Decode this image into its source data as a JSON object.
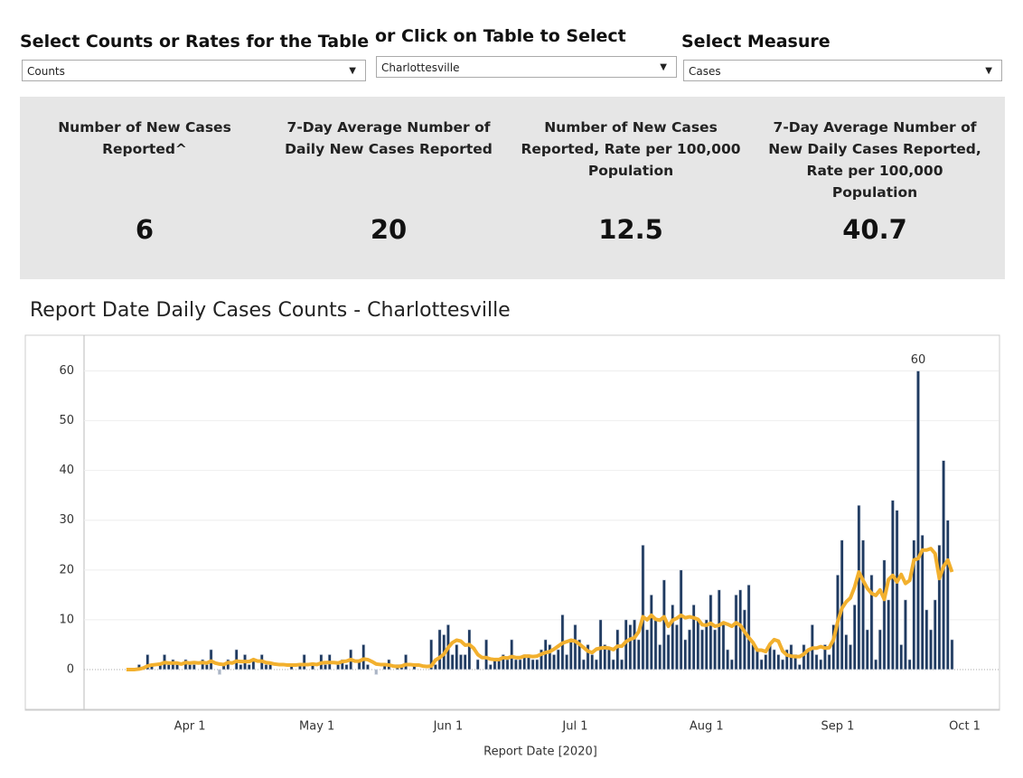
{
  "filters": [
    {
      "label": "Select Counts or Rates for the Table",
      "value": "Counts"
    },
    {
      "label": "or Click on Table to Select",
      "value": "Charlottesville"
    },
    {
      "label": "Select Measure",
      "value": "Cases"
    }
  ],
  "kpis": [
    {
      "label": "Number of New Cases Reported^",
      "value": 6
    },
    {
      "label": "7-Day Average Number of Daily New Cases Reported",
      "value": 20
    },
    {
      "label": "Number of New Cases Reported, Rate per 100,000 Population",
      "value": 12.5
    },
    {
      "label": "7-Day Average Number of New Daily Cases Reported, Rate per 100,000 Population",
      "value": 40.7
    }
  ],
  "chart_data": {
    "type": "bar",
    "title": "Report Date Daily Cases Counts - Charlottesville",
    "x_label": "Report Date [2020]",
    "x": [
      "2020-03-17",
      "2020-03-18",
      "2020-03-19",
      "2020-03-20",
      "2020-03-21",
      "2020-03-22",
      "2020-03-23",
      "2020-03-24",
      "2020-03-25",
      "2020-03-26",
      "2020-03-27",
      "2020-03-28",
      "2020-03-29",
      "2020-03-30",
      "2020-03-31",
      "2020-04-01",
      "2020-04-02",
      "2020-04-03",
      "2020-04-04",
      "2020-04-05",
      "2020-04-06",
      "2020-04-07",
      "2020-04-08",
      "2020-04-09",
      "2020-04-10",
      "2020-04-11",
      "2020-04-12",
      "2020-04-13",
      "2020-04-14",
      "2020-04-15",
      "2020-04-16",
      "2020-04-17",
      "2020-04-18",
      "2020-04-19",
      "2020-04-20",
      "2020-04-21",
      "2020-04-22",
      "2020-04-23",
      "2020-04-24",
      "2020-04-25",
      "2020-04-26",
      "2020-04-27",
      "2020-04-28",
      "2020-04-29",
      "2020-04-30",
      "2020-05-01",
      "2020-05-02",
      "2020-05-03",
      "2020-05-04",
      "2020-05-05",
      "2020-05-06",
      "2020-05-07",
      "2020-05-08",
      "2020-05-09",
      "2020-05-10",
      "2020-05-11",
      "2020-05-12",
      "2020-05-13",
      "2020-05-14",
      "2020-05-15",
      "2020-05-16",
      "2020-05-17",
      "2020-05-18",
      "2020-05-19",
      "2020-05-20",
      "2020-05-21",
      "2020-05-22",
      "2020-05-23",
      "2020-05-24",
      "2020-05-25",
      "2020-05-26",
      "2020-05-27",
      "2020-05-28",
      "2020-05-29",
      "2020-05-30",
      "2020-05-31",
      "2020-06-01",
      "2020-06-02",
      "2020-06-03",
      "2020-06-04",
      "2020-06-05",
      "2020-06-06",
      "2020-06-07",
      "2020-06-08",
      "2020-06-09",
      "2020-06-10",
      "2020-06-11",
      "2020-06-12",
      "2020-06-13",
      "2020-06-14",
      "2020-06-15",
      "2020-06-16",
      "2020-06-17",
      "2020-06-18",
      "2020-06-19",
      "2020-06-20",
      "2020-06-21",
      "2020-06-22",
      "2020-06-23",
      "2020-06-24",
      "2020-06-25",
      "2020-06-26",
      "2020-06-27",
      "2020-06-28",
      "2020-06-29",
      "2020-06-30",
      "2020-07-01",
      "2020-07-02",
      "2020-07-03",
      "2020-07-04",
      "2020-07-05",
      "2020-07-06",
      "2020-07-07",
      "2020-07-08",
      "2020-07-09",
      "2020-07-10",
      "2020-07-11",
      "2020-07-12",
      "2020-07-13",
      "2020-07-14",
      "2020-07-15",
      "2020-07-16",
      "2020-07-17",
      "2020-07-18",
      "2020-07-19",
      "2020-07-20",
      "2020-07-21",
      "2020-07-22",
      "2020-07-23",
      "2020-07-24",
      "2020-07-25",
      "2020-07-26",
      "2020-07-27",
      "2020-07-28",
      "2020-07-29",
      "2020-07-30",
      "2020-07-31",
      "2020-08-01",
      "2020-08-02",
      "2020-08-03",
      "2020-08-04",
      "2020-08-05",
      "2020-08-06",
      "2020-08-07",
      "2020-08-08",
      "2020-08-09",
      "2020-08-10",
      "2020-08-11",
      "2020-08-12",
      "2020-08-13",
      "2020-08-14",
      "2020-08-15",
      "2020-08-16",
      "2020-08-17",
      "2020-08-18",
      "2020-08-19",
      "2020-08-20",
      "2020-08-21",
      "2020-08-22",
      "2020-08-23",
      "2020-08-24",
      "2020-08-25",
      "2020-08-26",
      "2020-08-27",
      "2020-08-28",
      "2020-08-29",
      "2020-08-30",
      "2020-08-31",
      "2020-09-01",
      "2020-09-02",
      "2020-09-03",
      "2020-09-04",
      "2020-09-05",
      "2020-09-06",
      "2020-09-07",
      "2020-09-08",
      "2020-09-09",
      "2020-09-10",
      "2020-09-11",
      "2020-09-12",
      "2020-09-13",
      "2020-09-14",
      "2020-09-15",
      "2020-09-16",
      "2020-09-17",
      "2020-09-18",
      "2020-09-19",
      "2020-09-20",
      "2020-09-21",
      "2020-09-22",
      "2020-09-23",
      "2020-09-24",
      "2020-09-25",
      "2020-09-26",
      "2020-09-27",
      "2020-09-28"
    ],
    "series": [
      {
        "color": "#1f3a60",
        "values": [
          0,
          0,
          0,
          1,
          0,
          3,
          1,
          0,
          1,
          3,
          1,
          2,
          1,
          0,
          2,
          1,
          1,
          0,
          2,
          1,
          4,
          0,
          -1,
          1,
          2,
          0,
          4,
          1,
          3,
          1,
          2,
          0,
          3,
          1,
          1,
          0,
          0,
          0,
          0,
          1,
          0,
          1,
          3,
          0,
          1,
          0,
          3,
          1,
          3,
          0,
          1,
          2,
          1,
          4,
          0,
          2,
          5,
          1,
          0,
          -1,
          0,
          1,
          2,
          0,
          1,
          1,
          3,
          0,
          1,
          0,
          0,
          0,
          6,
          1,
          8,
          7,
          9,
          3,
          5,
          3,
          3,
          8,
          0,
          2,
          0,
          6,
          1,
          2,
          2,
          3,
          2,
          6,
          2,
          2,
          3,
          3,
          2,
          2,
          4,
          6,
          5,
          3,
          4,
          11,
          3,
          6,
          9,
          6,
          2,
          5,
          3,
          2,
          10,
          5,
          4,
          2,
          8,
          2,
          10,
          9,
          10,
          6,
          25,
          8,
          15,
          10,
          5,
          18,
          7,
          13,
          9,
          20,
          6,
          8,
          13,
          10,
          8,
          10,
          15,
          8,
          16,
          9,
          4,
          2,
          15,
          16,
          12,
          17,
          5,
          4,
          2,
          3,
          5,
          4,
          3,
          2,
          4,
          5,
          3,
          1,
          5,
          4,
          9,
          3,
          2,
          5,
          3,
          9,
          19,
          26,
          7,
          5,
          13,
          33,
          26,
          8,
          19,
          2,
          8,
          22,
          14,
          34,
          32,
          5,
          14,
          2,
          26,
          60,
          27,
          12,
          8,
          14,
          25,
          42,
          30,
          6
        ]
      },
      {
        "type": "line",
        "color": "#f2b02e",
        "values": [
          0,
          0,
          0,
          0.1,
          0.3,
          0.7,
          0.9,
          1,
          1.1,
          1.4,
          1.3,
          1.3,
          1.3,
          1.1,
          1.4,
          1.3,
          1.4,
          1.3,
          1.4,
          1.3,
          1.7,
          1.3,
          1.1,
          1,
          1.4,
          1.3,
          1.7,
          1.6,
          1.6,
          1.6,
          2,
          1.7,
          1.7,
          1.4,
          1.3,
          1.1,
          1,
          1,
          0.9,
          0.9,
          0.9,
          1,
          1,
          1,
          1.1,
          1,
          1.3,
          1.4,
          1.4,
          1.4,
          1.3,
          1.6,
          1.7,
          2,
          1.7,
          1.7,
          2.1,
          2,
          1.6,
          1.1,
          1,
          1,
          0.9,
          0.7,
          0.6,
          0.7,
          1,
          1,
          0.9,
          0.9,
          0.7,
          0.6,
          0.7,
          1.9,
          2.4,
          3.1,
          4.4,
          5.4,
          5.9,
          5.7,
          4.9,
          5,
          4.3,
          3,
          2.4,
          2.4,
          2.1,
          2,
          2,
          2.4,
          2.3,
          2.6,
          2.4,
          2.4,
          2.7,
          2.7,
          2.6,
          2.7,
          3.1,
          3.4,
          3.6,
          4.1,
          4.7,
          5.3,
          5.6,
          5.9,
          5.7,
          5.1,
          4.4,
          3.7,
          3.4,
          4.1,
          4.3,
          4.4,
          4.3,
          4,
          4.7,
          4.7,
          5.6,
          6.1,
          6.4,
          7.6,
          10.6,
          10,
          10.9,
          10.1,
          9.9,
          10.6,
          8.7,
          9.9,
          10.3,
          10.9,
          10.4,
          10.6,
          10.4,
          10.1,
          9,
          8.9,
          9.3,
          8.7,
          8.9,
          9.4,
          9.1,
          8.7,
          9.4,
          8.9,
          7.6,
          6.4,
          5.4,
          3.9,
          3.9,
          3.6,
          5.1,
          6,
          5.7,
          3.7,
          2.9,
          2.7,
          2.6,
          2.6,
          3.1,
          3.9,
          4.3,
          4.3,
          4.6,
          4.3,
          4.4,
          6,
          9.6,
          12.3,
          13.6,
          14.4,
          16.6,
          19.6,
          17.9,
          16.3,
          15.3,
          14.9,
          16,
          14.1,
          18.1,
          18.9,
          17.6,
          19.1,
          17.3,
          17.9,
          22,
          22.3,
          24,
          24,
          24.3,
          23.3,
          18.3,
          20.7,
          22,
          19.6
        ]
      }
    ],
    "annotations": [
      {
        "x": "2020-09-20",
        "y": 60
      }
    ],
    "xlim": [
      "2020-03-07",
      "2020-10-09"
    ],
    "xticks": [
      {
        "value": "2020-04-01",
        "label": "Apr 1"
      },
      {
        "value": "2020-05-01",
        "label": "May 1"
      },
      {
        "value": "2020-06-01",
        "label": "Jun 1"
      },
      {
        "value": "2020-07-01",
        "label": "Jul 1"
      },
      {
        "value": "2020-08-01",
        "label": "Aug 1"
      },
      {
        "value": "2020-09-01",
        "label": "Sep 1"
      },
      {
        "value": "2020-10-01",
        "label": "Oct 1"
      }
    ],
    "ylim": [
      -8,
      67
    ],
    "yticks": [
      0,
      10,
      20,
      30,
      40,
      50,
      60
    ],
    "grid": true
  }
}
